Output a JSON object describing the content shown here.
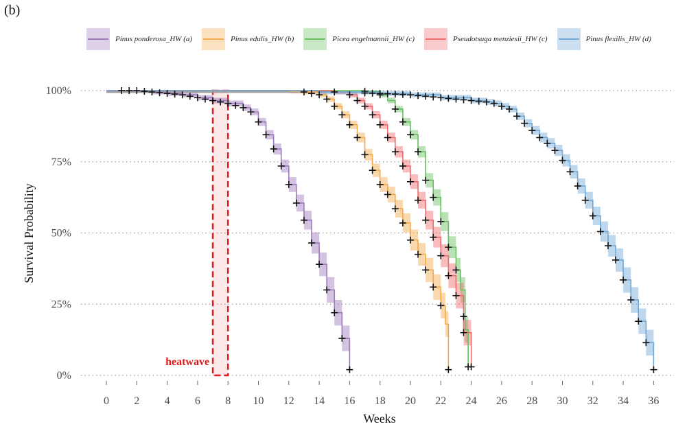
{
  "panel_label": "(b)",
  "chart_data": {
    "type": "line",
    "subtype": "kaplan-meier survival curves with confidence bands",
    "xlabel": "Weeks",
    "ylabel": "Survival Probability",
    "xlim": [
      -1,
      37
    ],
    "ylim": [
      0,
      1
    ],
    "x_ticks": [
      "0",
      "2",
      "4",
      "6",
      "8",
      "10",
      "12",
      "14",
      "16",
      "18",
      "20",
      "22",
      "24",
      "26",
      "28",
      "30",
      "32",
      "34",
      "36"
    ],
    "y_ticks": [
      "0%",
      "25%",
      "50%",
      "75%",
      "100%"
    ],
    "grid": "horizontal dotted",
    "legend_position": "top",
    "annotation": {
      "label": "heatwave",
      "x_start": 7,
      "x_end": 8,
      "color": "#e31a1c"
    },
    "series": [
      {
        "name": "Pinus ponderosa_HW (a)",
        "color": "#9e79bd",
        "end_week": 16,
        "points": [
          [
            0,
            1.0
          ],
          [
            1,
            1.0
          ],
          [
            2,
            1.0
          ],
          [
            3,
            0.995
          ],
          [
            4,
            0.99
          ],
          [
            5,
            0.985
          ],
          [
            6,
            0.975
          ],
          [
            7,
            0.965
          ],
          [
            8,
            0.955
          ],
          [
            9,
            0.94
          ],
          [
            9.5,
            0.925
          ],
          [
            10,
            0.89
          ],
          [
            10.5,
            0.845
          ],
          [
            11,
            0.795
          ],
          [
            11.5,
            0.735
          ],
          [
            12,
            0.67
          ],
          [
            12.5,
            0.605
          ],
          [
            13,
            0.545
          ],
          [
            13.5,
            0.465
          ],
          [
            14,
            0.39
          ],
          [
            14.5,
            0.3
          ],
          [
            15,
            0.22
          ],
          [
            15.5,
            0.13
          ],
          [
            16,
            0.02
          ]
        ],
        "censor_x": [
          1,
          1.5,
          2,
          2.5,
          3,
          3.5,
          4,
          4.5,
          5,
          5.5,
          6,
          6.5,
          7,
          7.5,
          8,
          8.5,
          9,
          9.5,
          10,
          10.5,
          11,
          11.5,
          12,
          12.5,
          13,
          13.5,
          14,
          14.5,
          15,
          15.5,
          16
        ]
      },
      {
        "name": "Pinus edulis_HW (b)",
        "color": "#f5a94a",
        "end_week": 22.5,
        "points": [
          [
            0,
            1.0
          ],
          [
            7,
            1.0
          ],
          [
            8,
            1.0
          ],
          [
            10,
            1.0
          ],
          [
            12,
            0.998
          ],
          [
            13,
            0.995
          ],
          [
            14,
            0.985
          ],
          [
            14.5,
            0.97
          ],
          [
            15,
            0.945
          ],
          [
            15.5,
            0.915
          ],
          [
            16,
            0.88
          ],
          [
            16.5,
            0.835
          ],
          [
            17,
            0.775
          ],
          [
            17.5,
            0.72
          ],
          [
            18,
            0.67
          ],
          [
            18.5,
            0.635
          ],
          [
            19,
            0.585
          ],
          [
            19.5,
            0.535
          ],
          [
            20,
            0.475
          ],
          [
            20.5,
            0.425
          ],
          [
            21,
            0.37
          ],
          [
            21.5,
            0.31
          ],
          [
            22,
            0.245
          ],
          [
            22.3,
            0.18
          ],
          [
            22.5,
            0.02
          ]
        ],
        "censor_x": [
          13,
          13.5,
          14,
          14.5,
          15,
          15.5,
          16,
          16.5,
          17,
          17.5,
          18,
          18.5,
          19,
          19.5,
          20,
          20.5,
          21,
          21.5,
          22,
          22.5
        ]
      },
      {
        "name": "Picea engelmannii_HW (c)",
        "color": "#66bf5e",
        "end_week": 23.8,
        "points": [
          [
            0,
            1.0
          ],
          [
            16,
            1.0
          ],
          [
            17,
            0.998
          ],
          [
            18,
            0.985
          ],
          [
            18.5,
            0.965
          ],
          [
            19,
            0.935
          ],
          [
            19.5,
            0.89
          ],
          [
            20,
            0.845
          ],
          [
            20.5,
            0.785
          ],
          [
            21,
            0.685
          ],
          [
            21.5,
            0.625
          ],
          [
            22,
            0.54
          ],
          [
            22.5,
            0.45
          ],
          [
            23,
            0.37
          ],
          [
            23.3,
            0.3
          ],
          [
            23.6,
            0.16
          ],
          [
            23.8,
            0.03
          ]
        ],
        "censor_x": [
          17,
          18,
          19,
          19.5,
          20,
          20.5,
          21,
          21.5,
          22,
          22.5,
          23,
          23.5,
          23.8
        ]
      },
      {
        "name": "Pseudotsuga menziesii_HW (c)",
        "color": "#ef6a6d",
        "end_week": 24,
        "points": [
          [
            0,
            1.0
          ],
          [
            14,
            1.0
          ],
          [
            15,
            0.995
          ],
          [
            16,
            0.985
          ],
          [
            16.5,
            0.965
          ],
          [
            17,
            0.945
          ],
          [
            17.5,
            0.915
          ],
          [
            18,
            0.88
          ],
          [
            18.5,
            0.835
          ],
          [
            19,
            0.785
          ],
          [
            19.5,
            0.735
          ],
          [
            20,
            0.68
          ],
          [
            20.5,
            0.615
          ],
          [
            21,
            0.545
          ],
          [
            21.5,
            0.485
          ],
          [
            22,
            0.42
          ],
          [
            22.5,
            0.35
          ],
          [
            23,
            0.28
          ],
          [
            23.5,
            0.15
          ],
          [
            24,
            0.03
          ]
        ],
        "censor_x": [
          15,
          16,
          16.5,
          17,
          17.5,
          18,
          18.5,
          19,
          19.5,
          20,
          20.5,
          21,
          21.5,
          22,
          22.5,
          23,
          23.5,
          24
        ]
      },
      {
        "name": "Pinus flexilis_HW (d)",
        "color": "#6fa7d6",
        "end_week": 36,
        "points": [
          [
            0,
            1.0
          ],
          [
            10,
            1.0
          ],
          [
            14,
            0.995
          ],
          [
            18,
            0.99
          ],
          [
            20,
            0.985
          ],
          [
            22,
            0.975
          ],
          [
            24,
            0.965
          ],
          [
            25,
            0.96
          ],
          [
            25.5,
            0.955
          ],
          [
            26,
            0.945
          ],
          [
            26.5,
            0.935
          ],
          [
            27,
            0.91
          ],
          [
            27.5,
            0.885
          ],
          [
            28,
            0.86
          ],
          [
            28.5,
            0.835
          ],
          [
            29,
            0.815
          ],
          [
            29.5,
            0.79
          ],
          [
            30,
            0.755
          ],
          [
            30.5,
            0.715
          ],
          [
            31,
            0.665
          ],
          [
            31.5,
            0.615
          ],
          [
            32,
            0.56
          ],
          [
            32.5,
            0.505
          ],
          [
            33,
            0.455
          ],
          [
            33.5,
            0.405
          ],
          [
            34,
            0.335
          ],
          [
            34.5,
            0.265
          ],
          [
            35,
            0.19
          ],
          [
            35.5,
            0.115
          ],
          [
            36,
            0.02
          ]
        ],
        "censor_x": [
          17,
          17.5,
          18,
          18.5,
          19,
          19.5,
          20,
          20.5,
          21,
          21.5,
          22,
          22.5,
          23,
          23.5,
          24,
          24.5,
          25,
          25.5,
          26,
          26.5,
          27,
          27.5,
          28,
          28.5,
          29,
          29.5,
          30,
          30.5,
          31,
          31.5,
          32,
          32.5,
          33,
          33.5,
          34,
          34.5,
          35,
          35.5,
          36
        ]
      }
    ]
  }
}
